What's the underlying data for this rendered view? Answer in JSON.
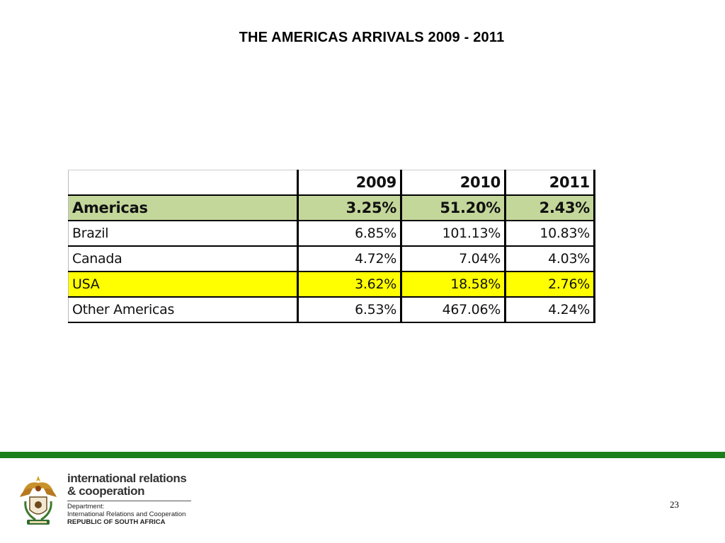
{
  "slide": {
    "title": "THE AMERICAS ARRIVALS 2009 - 2011",
    "page_number": "23"
  },
  "table": {
    "header": {
      "label": "",
      "years": [
        "2009",
        "2010",
        "2011"
      ]
    },
    "rows": [
      {
        "label": "Americas",
        "values": [
          "3.25%",
          "51.20%",
          "2.43%"
        ],
        "highlight": "#c4d79b"
      },
      {
        "label": "Brazil",
        "values": [
          "6.85%",
          "101.13%",
          "10.83%"
        ]
      },
      {
        "label": "Canada",
        "values": [
          "4.72%",
          "7.04%",
          "4.03%"
        ]
      },
      {
        "label": "USA",
        "values": [
          "3.62%",
          "18.58%",
          "2.76%"
        ],
        "highlight": "#ffff00"
      },
      {
        "label": "Other Americas",
        "values": [
          "6.53%",
          "467.06%",
          "4.24%"
        ]
      }
    ]
  },
  "footer": {
    "band_color": "#1a7f1a",
    "logo_icon": "south-africa-coat-of-arms-icon",
    "org_line1": "international relations",
    "org_line2": "& cooperation",
    "dept_label": "Department:",
    "dept_name": "International Relations and Cooperation",
    "country": "REPUBLIC OF SOUTH AFRICA"
  }
}
